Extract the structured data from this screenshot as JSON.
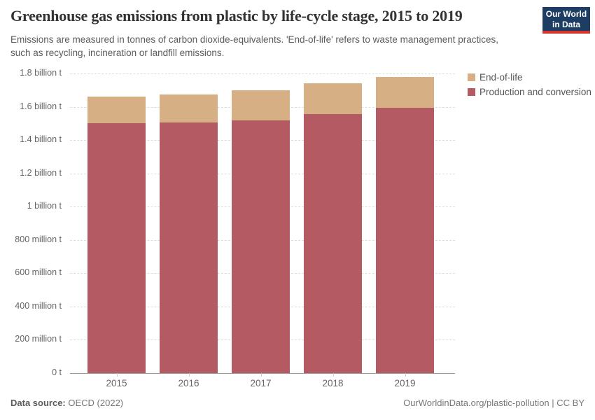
{
  "header": {
    "title": "Greenhouse gas emissions from plastic by life-cycle stage, 2015 to 2019",
    "subtitle": "Emissions are measured in tonnes of carbon dioxide-equivalents. 'End-of-life' refers to waste management practices, such as recycling, incineration or landfill emissions.",
    "logo": {
      "line1": "Our World",
      "line2": "in Data",
      "bg_color": "#1d3d63",
      "accent_color": "#d8352c"
    }
  },
  "chart_data": {
    "type": "bar",
    "stacked": true,
    "title": "Greenhouse gas emissions from plastic by life-cycle stage, 2015 to 2019",
    "unit": "tonnes of carbon dioxide-equivalents",
    "categories": [
      "2015",
      "2016",
      "2017",
      "2018",
      "2019"
    ],
    "series": [
      {
        "name": "Production and conversion",
        "color": "#b45a63",
        "values_billion_t": [
          1.5,
          1.505,
          1.52,
          1.555,
          1.595
        ]
      },
      {
        "name": "End-of-life",
        "color": "#d6af85",
        "values_billion_t": [
          0.16,
          0.17,
          0.18,
          0.185,
          0.185
        ]
      }
    ],
    "totals_billion_t": [
      1.66,
      1.675,
      1.7,
      1.74,
      1.78
    ],
    "ylim_billion_t": [
      0,
      1.8
    ],
    "ytick_step_billion_t": 0.2,
    "ytick_labels": [
      "0 t",
      "200 million t",
      "400 million t",
      "600 million t",
      "800 million t",
      "1 billion t",
      "1.2 billion t",
      "1.4 billion t",
      "1.6 billion t",
      "1.8 billion t"
    ],
    "grid": "horizontal dashed",
    "legend_position": "top-right"
  },
  "legend": {
    "items": [
      {
        "label": "End-of-life",
        "color": "#d6af85"
      },
      {
        "label": "Production and conversion",
        "color": "#b45a63"
      }
    ]
  },
  "footer": {
    "source_label": "Data source:",
    "source_value": "OECD (2022)",
    "link": "OurWorldinData.org/plastic-pollution | CC BY"
  }
}
